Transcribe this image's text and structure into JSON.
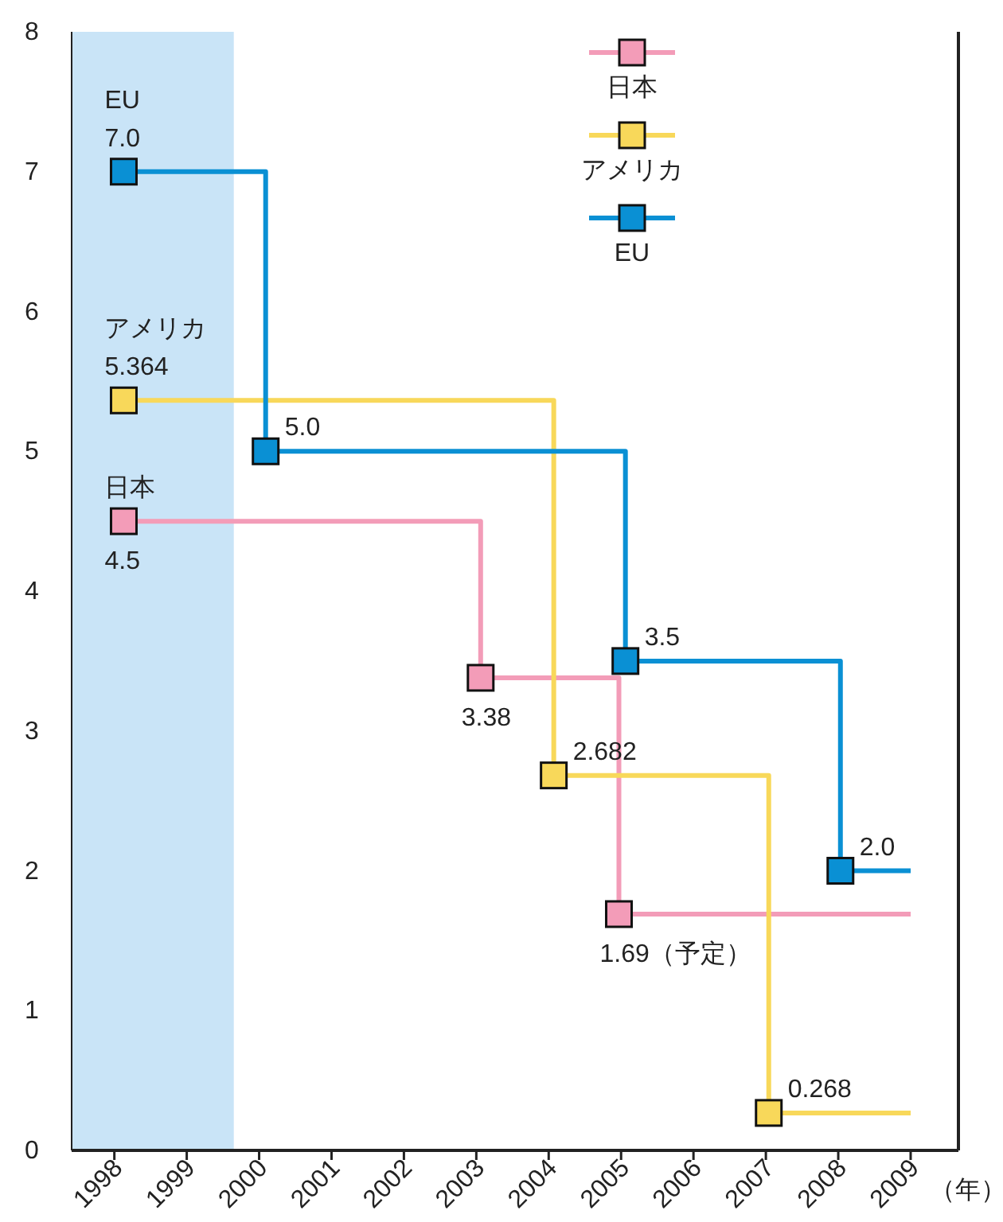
{
  "chart_data": {
    "type": "step",
    "xlabel": "（年）",
    "xlim": [
      1997.41,
      2009.66
    ],
    "ylim": [
      0,
      8
    ],
    "xticks": [
      1998,
      1999,
      2000,
      2001,
      2002,
      2003,
      2004,
      2005,
      2006,
      2007,
      2008,
      2009
    ],
    "yticks": [
      0,
      1,
      2,
      3,
      4,
      5,
      6,
      7,
      8
    ],
    "grid": false,
    "legend": "top",
    "marker": "square",
    "line_style": "solid",
    "bands": [
      {
        "axis": "x",
        "from": 1997.41,
        "to": 1999.65,
        "color": "#c9e4f7"
      }
    ],
    "series": [
      {
        "name": "日本",
        "color": "#f39cb8",
        "x": [
          1998.13,
          2003.06,
          2004.97,
          2009
        ],
        "values": [
          4.5,
          3.38,
          1.69,
          1.69
        ],
        "value_labels": [
          "4.5",
          "3.38",
          "1.69（予定）",
          null
        ]
      },
      {
        "name": "アメリカ",
        "color": "#f8d85a",
        "x": [
          1998.13,
          2004.07,
          2007.04,
          2009
        ],
        "values": [
          5.364,
          2.682,
          0.268,
          0.268
        ],
        "value_labels": [
          "5.364",
          "2.682",
          "0.268",
          null
        ]
      },
      {
        "name": "EU",
        "color": "#0a90d4",
        "x": [
          1998.13,
          2000.09,
          2005.06,
          2008.03,
          2009
        ],
        "values": [
          7.0,
          5.0,
          3.5,
          2.0,
          2.0
        ],
        "value_labels": [
          "7.0",
          "5.0",
          "3.5",
          "2.0",
          null
        ]
      }
    ]
  }
}
